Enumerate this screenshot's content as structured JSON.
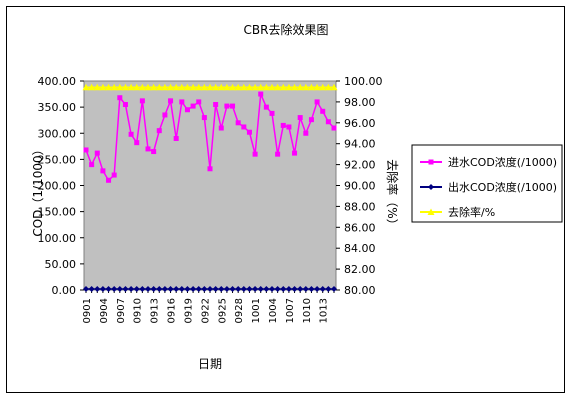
{
  "chart_data": {
    "type": "line",
    "title": "CBR去除效果图",
    "xlabel": "日期",
    "ylabel": "COD（1/1000）",
    "y2label": "去除率（%）",
    "ylim": [
      0,
      400
    ],
    "y2lim": [
      80,
      100
    ],
    "yticks": [
      "0.00",
      "50.00",
      "100.00",
      "150.00",
      "200.00",
      "250.00",
      "300.00",
      "350.00",
      "400.00"
    ],
    "y2ticks": [
      "80.00",
      "82.00",
      "84.00",
      "86.00",
      "88.00",
      "90.00",
      "92.00",
      "94.00",
      "96.00",
      "98.00",
      "100.00"
    ],
    "xtick_labels": [
      "0901",
      "0904",
      "0907",
      "0910",
      "0913",
      "0916",
      "0919",
      "0922",
      "0925",
      "0928",
      "1001",
      "1004",
      "1007",
      "1010",
      "1013"
    ],
    "x": [
      "0901",
      "0902",
      "0903",
      "0904",
      "0905",
      "0906",
      "0907",
      "0908",
      "0909",
      "0910",
      "0911",
      "0912",
      "0913",
      "0914",
      "0915",
      "0916",
      "0917",
      "0918",
      "0919",
      "0920",
      "0921",
      "0922",
      "0923",
      "0924",
      "0925",
      "0926",
      "0927",
      "0928",
      "0929",
      "0930",
      "1001",
      "1002",
      "1003",
      "1004",
      "1005",
      "1006",
      "1007",
      "1008",
      "1009",
      "1010",
      "1011",
      "1012",
      "1013",
      "1014",
      "1015"
    ],
    "legend_position": "right",
    "background": "#c0c0c0",
    "series": [
      {
        "name": "进水COD浓度(/1000)",
        "axis": "left",
        "color": "#ff00ff",
        "marker": "square",
        "values": [
          268,
          240,
          262,
          228,
          210,
          220,
          368,
          355,
          298,
          282,
          362,
          270,
          265,
          305,
          335,
          362,
          290,
          360,
          345,
          352,
          360,
          330,
          232,
          355,
          310,
          352,
          352,
          320,
          312,
          302,
          260,
          375,
          350,
          338,
          260,
          315,
          312,
          262,
          330,
          300,
          326,
          360,
          342,
          322,
          310
        ]
      },
      {
        "name": "出水COD浓度(/1000)",
        "axis": "left",
        "color": "#000080",
        "marker": "diamond",
        "values": [
          2,
          2,
          2,
          2,
          2,
          2,
          2,
          2,
          2,
          2,
          2,
          2,
          2,
          2,
          2,
          2,
          2,
          2,
          2,
          2,
          2,
          2,
          2,
          2,
          2,
          2,
          2,
          2,
          2,
          2,
          2,
          2,
          2,
          2,
          2,
          2,
          2,
          2,
          2,
          2,
          2,
          2,
          2,
          2,
          2
        ]
      },
      {
        "name": "去除率/%",
        "axis": "right",
        "color": "#ffff00",
        "marker": "triangle",
        "values": [
          99.4,
          99.4,
          99.4,
          99.4,
          99.4,
          99.4,
          99.4,
          99.4,
          99.4,
          99.4,
          99.4,
          99.4,
          99.4,
          99.4,
          99.4,
          99.4,
          99.4,
          99.4,
          99.4,
          99.4,
          99.4,
          99.4,
          99.4,
          99.4,
          99.4,
          99.4,
          99.4,
          99.4,
          99.4,
          99.4,
          99.4,
          99.4,
          99.4,
          99.4,
          99.4,
          99.4,
          99.4,
          99.4,
          99.4,
          99.4,
          99.4,
          99.4,
          99.4,
          99.4,
          99.4
        ]
      }
    ]
  }
}
